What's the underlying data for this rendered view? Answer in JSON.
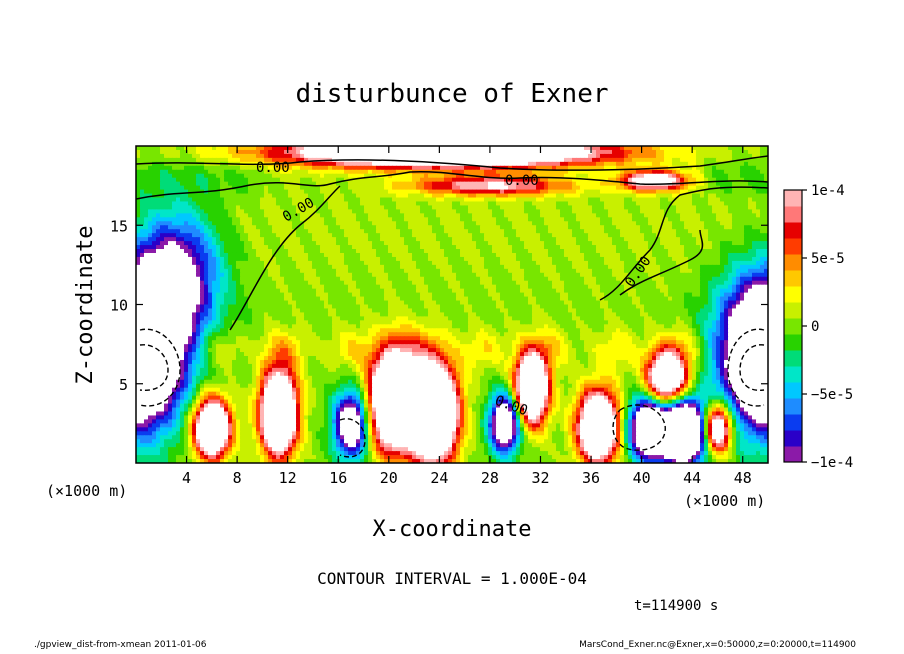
{
  "chart_data": {
    "type": "heatmap",
    "title": "disturbunce of Exner",
    "xlabel": "X-coordinate",
    "ylabel": "Z-coordinate",
    "x_unit_label": "(×1000 m)",
    "y_unit_label": "(×1000 m)",
    "xlim": [
      0,
      50
    ],
    "ylim": [
      0,
      20
    ],
    "x_ticks": [
      4,
      8,
      12,
      16,
      20,
      24,
      28,
      32,
      36,
      40,
      44,
      48
    ],
    "y_ticks": [
      5,
      10,
      15
    ],
    "colorbar": {
      "min": -0.0001,
      "max": 0.0001,
      "tick_values": [
        0.0001,
        5e-05,
        0,
        -5e-05,
        -0.0001
      ],
      "tick_labels": [
        "1e-4",
        "5e-5",
        "0",
        "−5e-5",
        "−1e-4"
      ],
      "colors": [
        "#8b1aa8",
        "#2a00c8",
        "#0a3cf0",
        "#1e8cff",
        "#00c8ff",
        "#00e6c8",
        "#00dc78",
        "#28d200",
        "#78e600",
        "#c8f000",
        "#ffff00",
        "#ffc800",
        "#ff8c00",
        "#ff3c00",
        "#e60000",
        "#ff7878",
        "#ffb4b4"
      ]
    },
    "contour_labels": [
      "0.00",
      "0.00",
      "0.00",
      "0.00",
      "0.00"
    ],
    "contour_interval_text": "CONTOUR INTERVAL = 1.000E-04",
    "time_text": "t=114900 s"
  },
  "footer": {
    "left": "./gpview_dist-from-xmean  2011-01-06",
    "right": "MarsCond_Exner.nc@Exner,x=0:50000,z=0:20000,t=114900"
  }
}
